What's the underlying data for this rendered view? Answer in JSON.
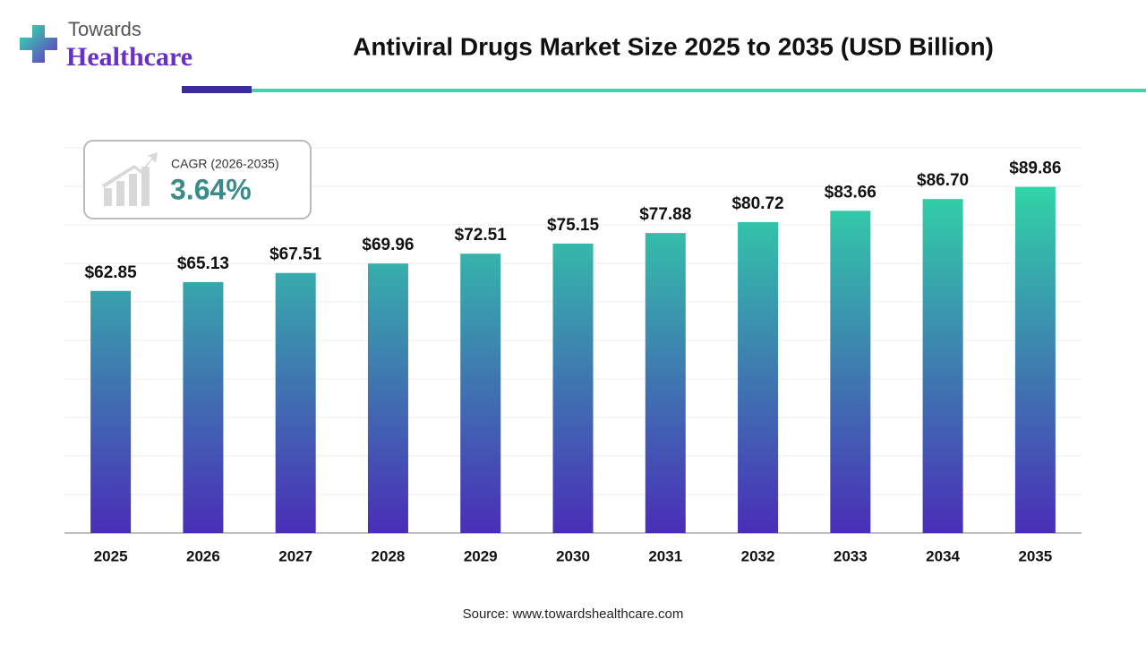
{
  "header": {
    "brand_top": "Towards",
    "brand_bottom": "Healthcare"
  },
  "chart_data": {
    "type": "bar",
    "title": "Antiviral Drugs Market Size 2025 to 2035 (USD Billion)",
    "categories": [
      "2025",
      "2026",
      "2027",
      "2028",
      "2029",
      "2030",
      "2031",
      "2032",
      "2033",
      "2034",
      "2035"
    ],
    "values": [
      62.85,
      65.13,
      67.51,
      69.96,
      72.51,
      75.15,
      77.88,
      80.72,
      83.66,
      86.7,
      89.86
    ],
    "value_labels": [
      "$62.85",
      "$65.13",
      "$67.51",
      "$69.96",
      "$72.51",
      "$75.15",
      "$77.88",
      "$80.72",
      "$83.66",
      "$86.70",
      "$89.86"
    ],
    "colors": [
      "#2ee6a6",
      "#4a2db8"
    ],
    "ylim": [
      0,
      100
    ],
    "yticks": [
      0,
      10,
      20,
      30,
      40,
      50,
      60,
      70,
      80,
      90,
      100
    ],
    "grid": true,
    "ytick_labels": false,
    "annotation": {
      "label": "CAGR (2026-2035)",
      "value": "3.64%"
    },
    "source": "Source: www.towardshealthcare.com"
  }
}
